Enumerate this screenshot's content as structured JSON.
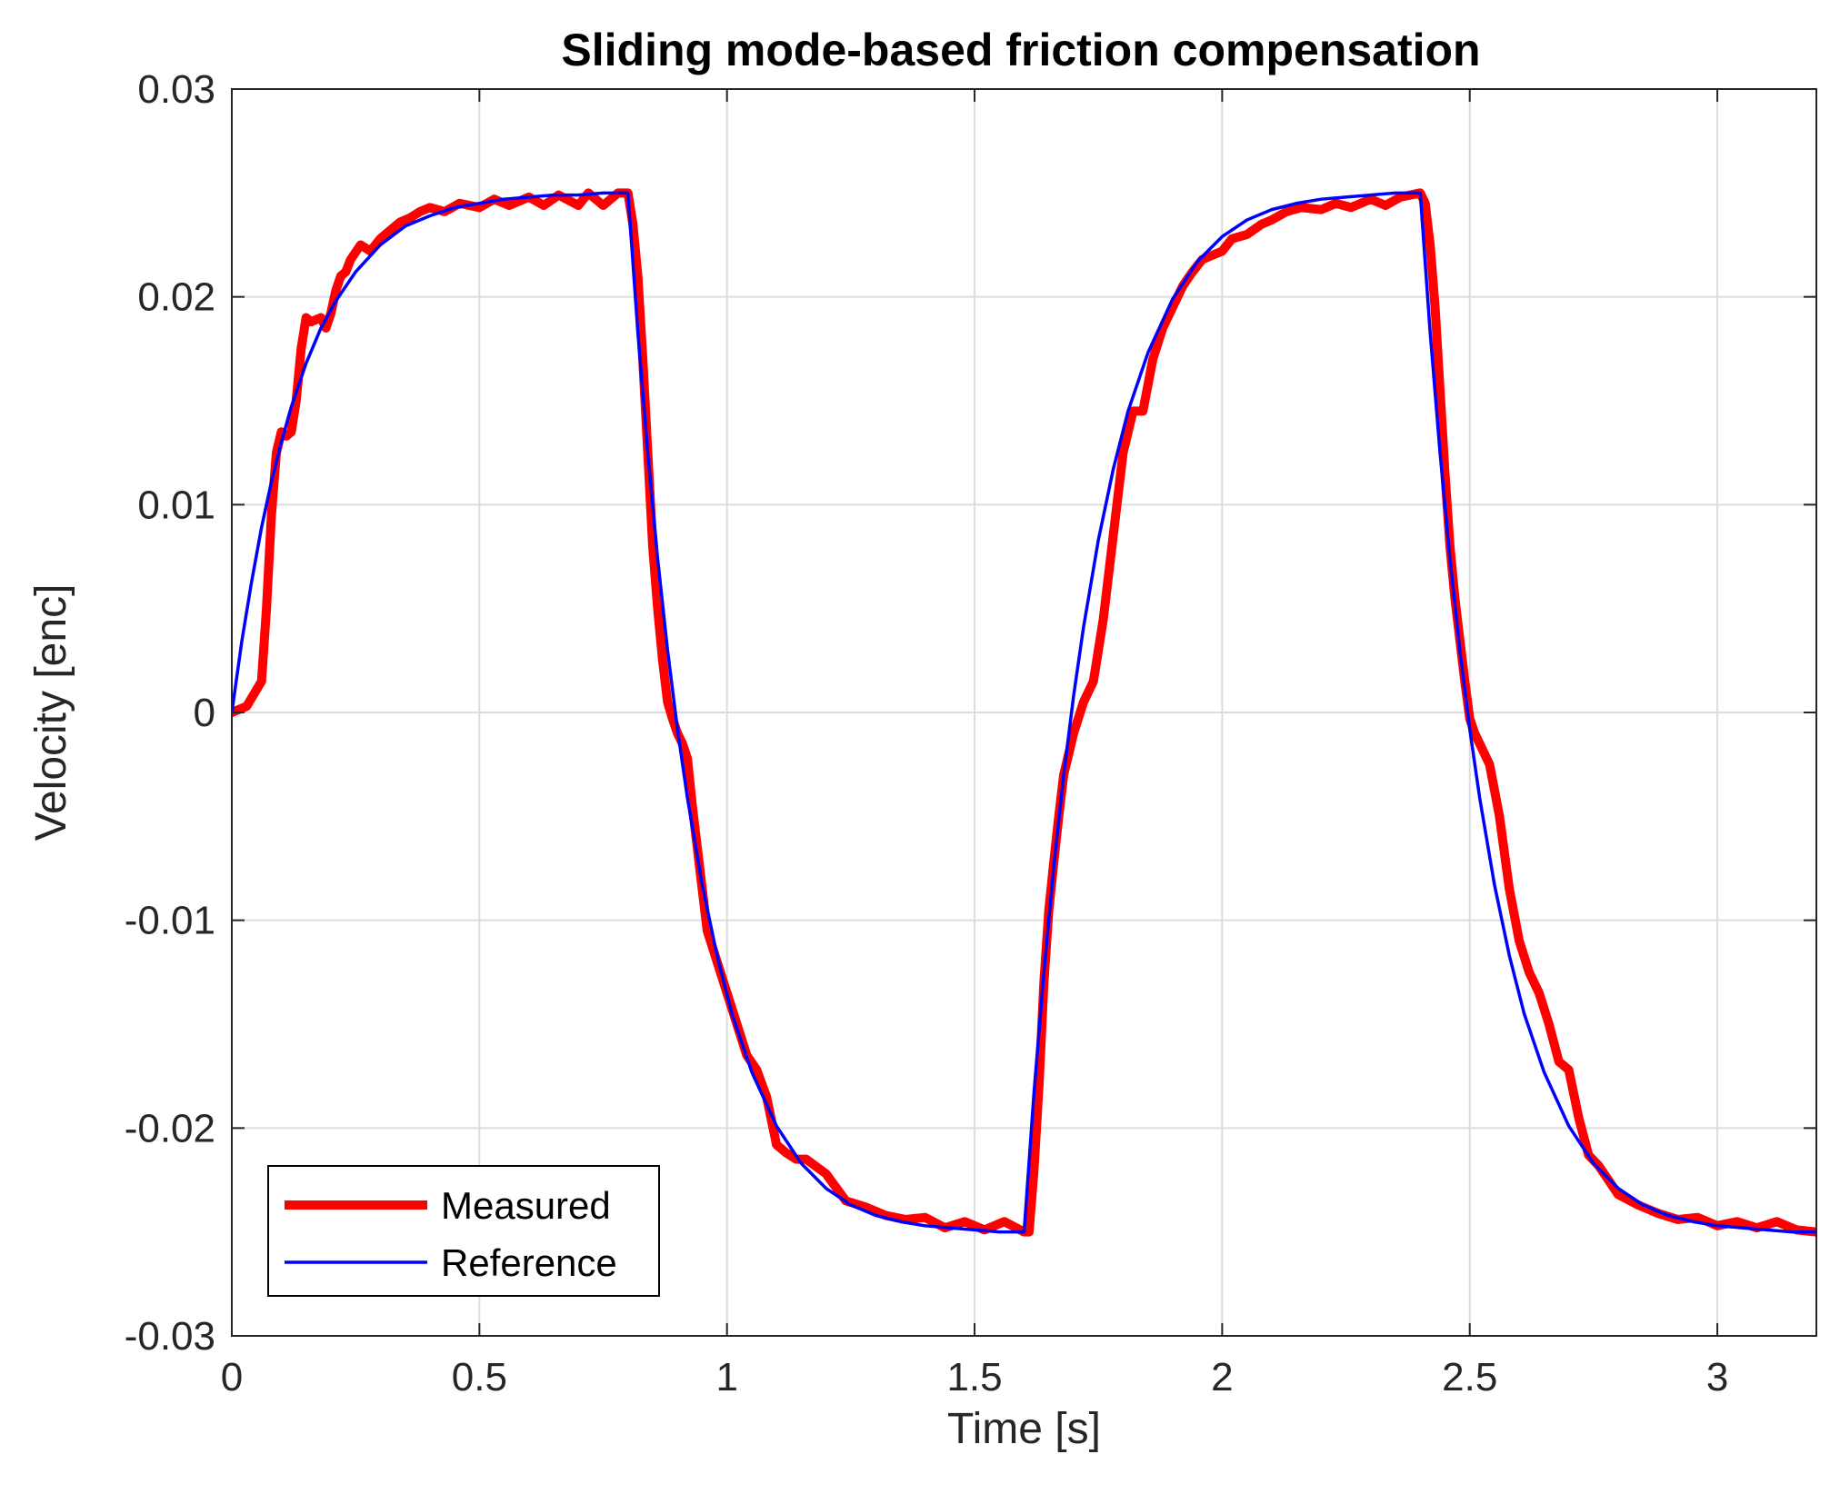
{
  "chart_data": {
    "type": "line",
    "title": "Sliding mode-based friction compensation",
    "xlabel": "Time [s]",
    "ylabel": "Velocity [enc]",
    "xlim": [
      0,
      3.2
    ],
    "ylim": [
      -0.03,
      0.03
    ],
    "xticks": [
      0,
      0.5,
      1,
      1.5,
      2,
      2.5,
      3
    ],
    "xtick_labels": [
      "0",
      "0.5",
      "1",
      "1.5",
      "2",
      "2.5",
      "3"
    ],
    "yticks": [
      -0.03,
      -0.02,
      -0.01,
      0,
      0.01,
      0.02,
      0.03
    ],
    "ytick_labels": [
      "-0.03",
      "-0.02",
      "-0.01",
      "0",
      "0.01",
      "0.02",
      "0.03"
    ],
    "grid": true,
    "legend_position": "bottom-left",
    "series": [
      {
        "name": "Measured",
        "color": "#ff0000",
        "x": [
          0.0,
          0.03,
          0.06,
          0.07,
          0.08,
          0.09,
          0.1,
          0.11,
          0.12,
          0.13,
          0.14,
          0.15,
          0.16,
          0.18,
          0.19,
          0.2,
          0.21,
          0.22,
          0.23,
          0.24,
          0.26,
          0.28,
          0.3,
          0.32,
          0.34,
          0.36,
          0.38,
          0.4,
          0.43,
          0.46,
          0.5,
          0.53,
          0.56,
          0.6,
          0.63,
          0.66,
          0.7,
          0.72,
          0.75,
          0.78,
          0.8,
          0.81,
          0.82,
          0.83,
          0.84,
          0.85,
          0.86,
          0.87,
          0.88,
          0.89,
          0.9,
          0.91,
          0.92,
          0.93,
          0.94,
          0.95,
          0.96,
          0.98,
          1.0,
          1.02,
          1.04,
          1.06,
          1.08,
          1.1,
          1.12,
          1.14,
          1.16,
          1.2,
          1.24,
          1.28,
          1.32,
          1.36,
          1.4,
          1.44,
          1.48,
          1.52,
          1.56,
          1.6,
          1.61,
          1.62,
          1.63,
          1.64,
          1.65,
          1.66,
          1.67,
          1.68,
          1.7,
          1.72,
          1.74,
          1.76,
          1.78,
          1.8,
          1.82,
          1.84,
          1.86,
          1.88,
          1.9,
          1.92,
          1.94,
          1.96,
          1.98,
          2.0,
          2.02,
          2.05,
          2.08,
          2.1,
          2.13,
          2.16,
          2.2,
          2.23,
          2.26,
          2.3,
          2.33,
          2.36,
          2.4,
          2.41,
          2.42,
          2.43,
          2.44,
          2.45,
          2.46,
          2.47,
          2.48,
          2.49,
          2.5,
          2.51,
          2.52,
          2.54,
          2.56,
          2.58,
          2.6,
          2.62,
          2.64,
          2.66,
          2.68,
          2.7,
          2.72,
          2.74,
          2.76,
          2.8,
          2.84,
          2.88,
          2.92,
          2.96,
          3.0,
          3.04,
          3.08,
          3.12,
          3.16,
          3.2
        ],
        "y": [
          0.0,
          0.0003,
          0.0015,
          0.005,
          0.0095,
          0.0125,
          0.0135,
          0.0133,
          0.0135,
          0.015,
          0.0175,
          0.019,
          0.0188,
          0.019,
          0.0185,
          0.0192,
          0.0203,
          0.021,
          0.0212,
          0.0218,
          0.0225,
          0.0222,
          0.0228,
          0.0232,
          0.0236,
          0.0238,
          0.0241,
          0.0243,
          0.0241,
          0.0245,
          0.0243,
          0.0247,
          0.0244,
          0.0248,
          0.0244,
          0.0249,
          0.0244,
          0.025,
          0.0244,
          0.025,
          0.025,
          0.0235,
          0.021,
          0.017,
          0.0125,
          0.008,
          0.005,
          0.0025,
          0.0005,
          -0.0003,
          -0.001,
          -0.0015,
          -0.0022,
          -0.0045,
          -0.0065,
          -0.0085,
          -0.0105,
          -0.012,
          -0.0135,
          -0.015,
          -0.0165,
          -0.0172,
          -0.0185,
          -0.0208,
          -0.0212,
          -0.0215,
          -0.0215,
          -0.0222,
          -0.0235,
          -0.0238,
          -0.0242,
          -0.0244,
          -0.0243,
          -0.0248,
          -0.0245,
          -0.0249,
          -0.0245,
          -0.025,
          -0.025,
          -0.022,
          -0.018,
          -0.013,
          -0.0095,
          -0.0072,
          -0.005,
          -0.003,
          -0.001,
          0.0005,
          0.0015,
          0.0045,
          0.0085,
          0.0125,
          0.0145,
          0.0145,
          0.017,
          0.0185,
          0.0195,
          0.0205,
          0.0212,
          0.0218,
          0.022,
          0.0222,
          0.0228,
          0.023,
          0.0235,
          0.0237,
          0.0241,
          0.0243,
          0.0242,
          0.0245,
          0.0243,
          0.0247,
          0.0244,
          0.0248,
          0.025,
          0.0245,
          0.0225,
          0.0195,
          0.0155,
          0.0115,
          0.008,
          0.0055,
          0.0035,
          0.0015,
          -0.0003,
          -0.001,
          -0.0015,
          -0.0025,
          -0.005,
          -0.0085,
          -0.011,
          -0.0125,
          -0.0135,
          -0.015,
          -0.0168,
          -0.0172,
          -0.0195,
          -0.0213,
          -0.0218,
          -0.0232,
          -0.0237,
          -0.0241,
          -0.0244,
          -0.0243,
          -0.0247,
          -0.0245,
          -0.0248,
          -0.0245,
          -0.0249,
          -0.025
        ]
      },
      {
        "name": "Reference",
        "color": "#0000ff",
        "x": [
          0.0,
          0.02,
          0.04,
          0.06,
          0.08,
          0.1,
          0.12,
          0.15,
          0.18,
          0.21,
          0.25,
          0.3,
          0.35,
          0.4,
          0.45,
          0.5,
          0.55,
          0.6,
          0.65,
          0.7,
          0.75,
          0.8,
          0.82,
          0.84,
          0.86,
          0.88,
          0.9,
          0.92,
          0.95,
          0.98,
          1.01,
          1.05,
          1.1,
          1.15,
          1.2,
          1.25,
          1.3,
          1.35,
          1.4,
          1.45,
          1.5,
          1.55,
          1.6,
          1.62,
          1.64,
          1.66,
          1.68,
          1.7,
          1.72,
          1.75,
          1.78,
          1.81,
          1.85,
          1.9,
          1.95,
          2.0,
          2.05,
          2.1,
          2.15,
          2.2,
          2.25,
          2.3,
          2.35,
          2.4,
          2.42,
          2.44,
          2.46,
          2.48,
          2.5,
          2.52,
          2.55,
          2.58,
          2.61,
          2.65,
          2.7,
          2.75,
          2.8,
          2.85,
          2.9,
          2.95,
          3.0,
          3.05,
          3.1,
          3.15,
          3.2
        ],
        "y": [
          0.0,
          0.0034,
          0.0063,
          0.0089,
          0.0111,
          0.013,
          0.0147,
          0.0168,
          0.0185,
          0.0198,
          0.0212,
          0.0225,
          0.0234,
          0.0239,
          0.0243,
          0.0245,
          0.0247,
          0.0248,
          0.0249,
          0.0249,
          0.025,
          0.025,
          0.0183,
          0.0125,
          0.0074,
          0.003,
          -0.0008,
          -0.0041,
          -0.0083,
          -0.0117,
          -0.0145,
          -0.0173,
          -0.0199,
          -0.0217,
          -0.0229,
          -0.0237,
          -0.0242,
          -0.0245,
          -0.0247,
          -0.0248,
          -0.0249,
          -0.025,
          -0.025,
          -0.0183,
          -0.0125,
          -0.0074,
          -0.003,
          0.0008,
          0.0041,
          0.0083,
          0.0117,
          0.0145,
          0.0173,
          0.0199,
          0.0217,
          0.0229,
          0.0237,
          0.0242,
          0.0245,
          0.0247,
          0.0248,
          0.0249,
          0.025,
          0.025,
          0.0183,
          0.0125,
          0.0074,
          0.003,
          -0.0008,
          -0.0041,
          -0.0083,
          -0.0117,
          -0.0145,
          -0.0173,
          -0.0199,
          -0.0217,
          -0.0229,
          -0.0237,
          -0.0242,
          -0.0245,
          -0.0247,
          -0.0248,
          -0.0249,
          -0.025,
          -0.025
        ]
      }
    ]
  }
}
